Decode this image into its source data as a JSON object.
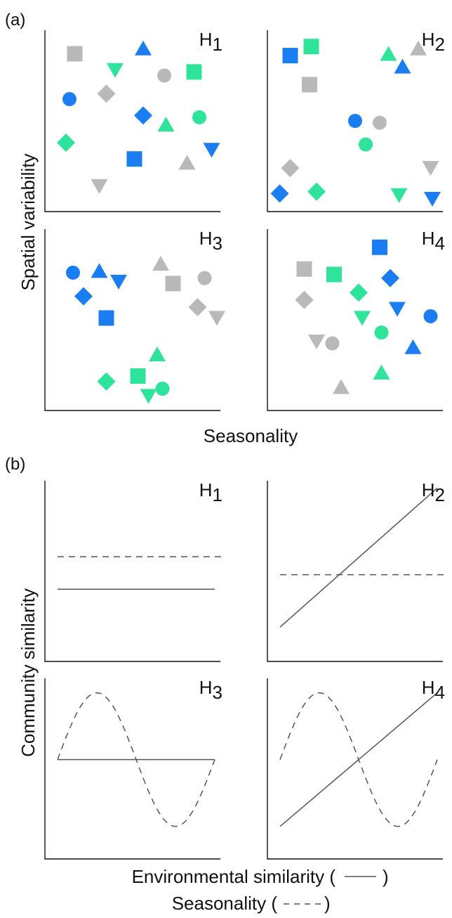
{
  "figure": {
    "colors": {
      "blue": "#1a7ef2",
      "green": "#2ee39a",
      "gray": "#b9b9b9",
      "axis": "#111111",
      "line": "#555555"
    },
    "part_a": {
      "label": "(a)",
      "xlabel": "Seasonality",
      "ylabel": "Spatial variability",
      "panels": [
        {
          "hypothesis": "H1",
          "title": "H",
          "sub": "1",
          "points": [
            {
              "shape": "square",
              "color": "gray",
              "x": 0.17,
              "y": 0.87
            },
            {
              "shape": "triangle-up",
              "color": "blue",
              "x": 0.56,
              "y": 0.9
            },
            {
              "shape": "triangle-down",
              "color": "green",
              "x": 0.4,
              "y": 0.78
            },
            {
              "shape": "circle",
              "color": "gray",
              "x": 0.68,
              "y": 0.75
            },
            {
              "shape": "square",
              "color": "green",
              "x": 0.85,
              "y": 0.77
            },
            {
              "shape": "circle",
              "color": "blue",
              "x": 0.14,
              "y": 0.62
            },
            {
              "shape": "diamond",
              "color": "gray",
              "x": 0.35,
              "y": 0.65
            },
            {
              "shape": "diamond",
              "color": "blue",
              "x": 0.56,
              "y": 0.53
            },
            {
              "shape": "triangle-up",
              "color": "green",
              "x": 0.69,
              "y": 0.48
            },
            {
              "shape": "circle",
              "color": "green",
              "x": 0.88,
              "y": 0.52
            },
            {
              "shape": "diamond",
              "color": "green",
              "x": 0.12,
              "y": 0.38
            },
            {
              "shape": "triangle-down",
              "color": "blue",
              "x": 0.95,
              "y": 0.34
            },
            {
              "shape": "square",
              "color": "blue",
              "x": 0.51,
              "y": 0.29
            },
            {
              "shape": "triangle-up",
              "color": "gray",
              "x": 0.81,
              "y": 0.27
            },
            {
              "shape": "triangle-down",
              "color": "gray",
              "x": 0.31,
              "y": 0.14
            }
          ]
        },
        {
          "hypothesis": "H2",
          "title": "H",
          "sub": "2",
          "points": [
            {
              "shape": "square",
              "color": "green",
              "x": 0.25,
              "y": 0.91
            },
            {
              "shape": "square",
              "color": "blue",
              "x": 0.13,
              "y": 0.86
            },
            {
              "shape": "triangle-up",
              "color": "green",
              "x": 0.69,
              "y": 0.87
            },
            {
              "shape": "triangle-up",
              "color": "gray",
              "x": 0.86,
              "y": 0.9
            },
            {
              "shape": "triangle-up",
              "color": "blue",
              "x": 0.77,
              "y": 0.8
            },
            {
              "shape": "square",
              "color": "gray",
              "x": 0.24,
              "y": 0.7
            },
            {
              "shape": "circle",
              "color": "blue",
              "x": 0.5,
              "y": 0.5
            },
            {
              "shape": "circle",
              "color": "gray",
              "x": 0.64,
              "y": 0.49
            },
            {
              "shape": "circle",
              "color": "green",
              "x": 0.56,
              "y": 0.37
            },
            {
              "shape": "diamond",
              "color": "gray",
              "x": 0.13,
              "y": 0.24
            },
            {
              "shape": "triangle-down",
              "color": "gray",
              "x": 0.93,
              "y": 0.24
            },
            {
              "shape": "diamond",
              "color": "blue",
              "x": 0.07,
              "y": 0.1
            },
            {
              "shape": "diamond",
              "color": "green",
              "x": 0.28,
              "y": 0.11
            },
            {
              "shape": "triangle-down",
              "color": "green",
              "x": 0.75,
              "y": 0.09
            },
            {
              "shape": "triangle-down",
              "color": "blue",
              "x": 0.94,
              "y": 0.07
            }
          ]
        },
        {
          "hypothesis": "H3",
          "title": "H",
          "sub": "3",
          "points": [
            {
              "shape": "triangle-up",
              "color": "gray",
              "x": 0.66,
              "y": 0.81
            },
            {
              "shape": "circle",
              "color": "blue",
              "x": 0.16,
              "y": 0.76
            },
            {
              "shape": "triangle-up",
              "color": "blue",
              "x": 0.31,
              "y": 0.77
            },
            {
              "shape": "triangle-down",
              "color": "blue",
              "x": 0.42,
              "y": 0.71
            },
            {
              "shape": "square",
              "color": "gray",
              "x": 0.73,
              "y": 0.7
            },
            {
              "shape": "circle",
              "color": "gray",
              "x": 0.91,
              "y": 0.73
            },
            {
              "shape": "diamond",
              "color": "blue",
              "x": 0.22,
              "y": 0.63
            },
            {
              "shape": "diamond",
              "color": "gray",
              "x": 0.87,
              "y": 0.57
            },
            {
              "shape": "square",
              "color": "blue",
              "x": 0.35,
              "y": 0.51
            },
            {
              "shape": "triangle-down",
              "color": "gray",
              "x": 0.98,
              "y": 0.51
            },
            {
              "shape": "triangle-up",
              "color": "green",
              "x": 0.64,
              "y": 0.31
            },
            {
              "shape": "square",
              "color": "green",
              "x": 0.53,
              "y": 0.19
            },
            {
              "shape": "diamond",
              "color": "green",
              "x": 0.35,
              "y": 0.16
            },
            {
              "shape": "circle",
              "color": "green",
              "x": 0.67,
              "y": 0.12
            },
            {
              "shape": "triangle-down",
              "color": "green",
              "x": 0.59,
              "y": 0.08
            }
          ]
        },
        {
          "hypothesis": "H4",
          "title": "H",
          "sub": "4",
          "points": [
            {
              "shape": "square",
              "color": "blue",
              "x": 0.64,
              "y": 0.9
            },
            {
              "shape": "square",
              "color": "gray",
              "x": 0.21,
              "y": 0.78
            },
            {
              "shape": "square",
              "color": "green",
              "x": 0.38,
              "y": 0.75
            },
            {
              "shape": "diamond",
              "color": "blue",
              "x": 0.7,
              "y": 0.73
            },
            {
              "shape": "diamond",
              "color": "green",
              "x": 0.52,
              "y": 0.65
            },
            {
              "shape": "diamond",
              "color": "gray",
              "x": 0.21,
              "y": 0.61
            },
            {
              "shape": "triangle-down",
              "color": "blue",
              "x": 0.74,
              "y": 0.56
            },
            {
              "shape": "circle",
              "color": "blue",
              "x": 0.93,
              "y": 0.52
            },
            {
              "shape": "triangle-down",
              "color": "green",
              "x": 0.54,
              "y": 0.51
            },
            {
              "shape": "circle",
              "color": "green",
              "x": 0.65,
              "y": 0.43
            },
            {
              "shape": "triangle-down",
              "color": "gray",
              "x": 0.28,
              "y": 0.38
            },
            {
              "shape": "circle",
              "color": "gray",
              "x": 0.37,
              "y": 0.37
            },
            {
              "shape": "triangle-up",
              "color": "blue",
              "x": 0.83,
              "y": 0.35
            },
            {
              "shape": "triangle-up",
              "color": "green",
              "x": 0.65,
              "y": 0.21
            },
            {
              "shape": "triangle-up",
              "color": "gray",
              "x": 0.42,
              "y": 0.13
            }
          ]
        }
      ]
    },
    "part_b": {
      "label": "(b)",
      "ylabel": "Community similarity",
      "xlabel_line1": "Environmental similarity (",
      "xlabel_line1_end": ")",
      "xlabel_line2": "Seasonality (",
      "xlabel_line2_end": ")",
      "panels": [
        {
          "hypothesis": "H1",
          "title": "H",
          "sub": "1",
          "solid": {
            "kind": "flat",
            "y": 0.4
          },
          "dashed": {
            "kind": "flat",
            "y": 0.58
          }
        },
        {
          "hypothesis": "H2",
          "title": "H",
          "sub": "2",
          "solid": {
            "kind": "linear",
            "y_start": 0.19,
            "y_end": 0.96
          },
          "dashed": {
            "kind": "flat",
            "y": 0.48
          }
        },
        {
          "hypothesis": "H3",
          "title": "H",
          "sub": "3",
          "solid": {
            "kind": "flat",
            "y": 0.55
          },
          "dashed": {
            "kind": "sine",
            "y_mid": 0.55,
            "amplitude": 0.37
          }
        },
        {
          "hypothesis": "H4",
          "title": "H",
          "sub": "4",
          "solid": {
            "kind": "linear",
            "y_start": 0.18,
            "y_end": 0.92
          },
          "dashed": {
            "kind": "sine",
            "y_mid": 0.55,
            "amplitude": 0.37
          }
        }
      ]
    }
  }
}
